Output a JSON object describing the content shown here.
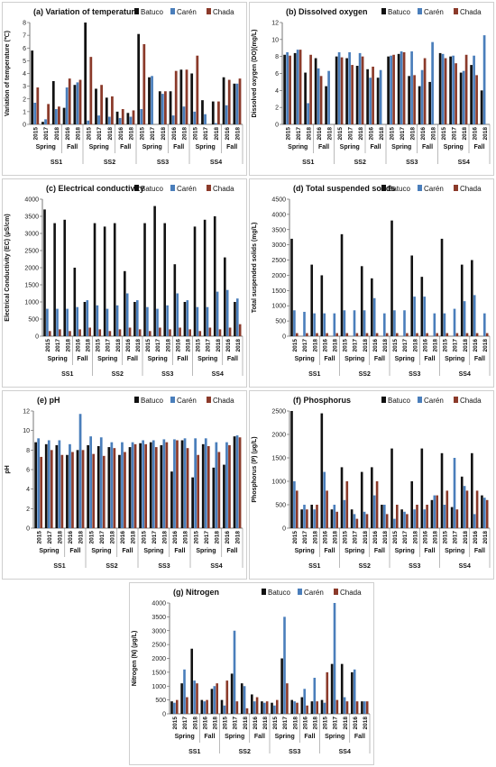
{
  "colors": {
    "Batuco": "#111111",
    "Carén": "#4a7ebb",
    "Chada": "#8b3a2a"
  },
  "chart_data": [
    {
      "id": "a",
      "type": "bar",
      "title": "(a) Variation of temperature",
      "ylabel": "Variation of temperature (℃)",
      "ylim": [
        0,
        8
      ],
      "yticks": [
        0,
        1,
        2,
        3,
        4,
        5,
        6,
        7,
        8
      ],
      "categories": [
        "2015",
        "2017",
        "2018",
        "2016",
        "2018",
        "2015",
        "2017",
        "2018",
        "2016",
        "2018",
        "2015",
        "2017",
        "2018",
        "2016",
        "2018",
        "2015",
        "2017",
        "2018",
        "2016",
        "2018"
      ],
      "seasons": [
        "Spring",
        "Fall",
        "Spring",
        "Fall",
        "Spring",
        "Fall",
        "Spring",
        "Fall"
      ],
      "sites": [
        "SS1",
        "SS2",
        "SS3",
        "SS4"
      ],
      "series": [
        {
          "name": "Batuco",
          "values": [
            5.8,
            0.2,
            3.4,
            1.3,
            3.1,
            8.0,
            2.8,
            2.1,
            1.0,
            0.9,
            7.1,
            3.7,
            2.6,
            2.6,
            4.3,
            4.0,
            1.9,
            1.8,
            3.7,
            3.2
          ]
        },
        {
          "name": "Carén",
          "values": [
            1.7,
            0.4,
            1.2,
            2.9,
            3.3,
            0.3,
            0.7,
            0.6,
            0.5,
            0.6,
            1.2,
            3.8,
            2.4,
            0.7,
            1.4,
            1.0,
            0.8,
            0.1,
            1.5,
            3.2
          ]
        },
        {
          "name": "Chada",
          "values": [
            2.9,
            1.6,
            1.4,
            3.6,
            3.5,
            5.3,
            3.1,
            2.2,
            1.2,
            1.1,
            6.3,
            0.0,
            2.6,
            4.2,
            4.3,
            5.4,
            0.0,
            1.8,
            3.5,
            3.6
          ]
        }
      ]
    },
    {
      "id": "b",
      "type": "bar",
      "title": "(b) Dissolved oxygen",
      "ylabel": "Dissolved oxygen (DO)(mg/L)",
      "ylim": [
        0,
        12
      ],
      "yticks": [
        0,
        2,
        4,
        6,
        8,
        10,
        12
      ],
      "categories": [
        "2015",
        "2017",
        "2018",
        "2016",
        "2018",
        "2015",
        "2017",
        "2018",
        "2016",
        "2018",
        "2015",
        "2017",
        "2018",
        "2016",
        "2018",
        "2015",
        "2017",
        "2018",
        "2016",
        "2018"
      ],
      "seasons": [
        "Spring",
        "Fall",
        "Spring",
        "Fall",
        "Spring",
        "Fall",
        "Spring",
        "Fall"
      ],
      "sites": [
        "SS1",
        "SS2",
        "SS3",
        "SS4"
      ],
      "series": [
        {
          "name": "Batuco",
          "values": [
            8.2,
            8.4,
            6.1,
            7.8,
            4.5,
            8.0,
            7.8,
            6.9,
            6.5,
            5.5,
            8.0,
            8.3,
            5.7,
            4.5,
            5.0,
            8.4,
            8.0,
            6.1,
            7.0,
            4.0
          ]
        },
        {
          "name": "Carén",
          "values": [
            8.5,
            8.8,
            2.5,
            6.6,
            6.3,
            8.5,
            8.5,
            8.4,
            5.5,
            6.4,
            8.1,
            8.6,
            8.6,
            6.4,
            9.7,
            8.3,
            8.1,
            6.3,
            8.1,
            10.5
          ]
        },
        {
          "name": "Chada",
          "values": [
            8.1,
            8.8,
            8.2,
            5.7,
            0.0,
            7.9,
            7.0,
            8.0,
            6.8,
            0.0,
            8.2,
            8.5,
            5.8,
            7.8,
            0.0,
            7.8,
            7.2,
            8.2,
            5.8,
            0.0
          ]
        }
      ]
    },
    {
      "id": "c",
      "type": "bar",
      "title": "(c) Electrical conductivity",
      "ylabel": "Electrical Conductivity (EC) (μS/cm)",
      "ylim": [
        0,
        4000
      ],
      "yticks": [
        0,
        500,
        1000,
        1500,
        2000,
        2500,
        3000,
        3500,
        4000
      ],
      "categories": [
        "2015",
        "2017",
        "2018",
        "2016",
        "2018",
        "2015",
        "2017",
        "2018",
        "2016",
        "2018",
        "2015",
        "2017",
        "2018",
        "2016",
        "2018",
        "2015",
        "2017",
        "2018",
        "2016",
        "2018"
      ],
      "seasons": [
        "Spring",
        "Fall",
        "Spring",
        "Fall",
        "Spring",
        "Fall",
        "Spring",
        "Fall"
      ],
      "sites": [
        "SS1",
        "SS2",
        "SS3",
        "SS4"
      ],
      "series": [
        {
          "name": "Batuco",
          "values": [
            3700,
            3300,
            3400,
            2000,
            1000,
            3300,
            3200,
            3300,
            1900,
            1000,
            3300,
            3800,
            3300,
            2100,
            1000,
            3200,
            3400,
            3500,
            2300,
            1000
          ]
        },
        {
          "name": "Carén",
          "values": [
            800,
            800,
            800,
            850,
            1050,
            900,
            800,
            900,
            1250,
            1050,
            850,
            800,
            900,
            1250,
            1050,
            850,
            850,
            1300,
            1350,
            1100
          ]
        },
        {
          "name": "Chada",
          "values": [
            150,
            200,
            150,
            200,
            250,
            200,
            150,
            200,
            250,
            200,
            150,
            250,
            200,
            250,
            200,
            150,
            250,
            200,
            250,
            350
          ]
        }
      ]
    },
    {
      "id": "d",
      "type": "bar",
      "title": "(d) Total suspended solids",
      "ylabel": "Total suspended solids (mg/L)",
      "ylim": [
        0,
        4500
      ],
      "yticks": [
        0,
        500,
        1000,
        1500,
        2000,
        2500,
        3000,
        3500,
        4000,
        4500
      ],
      "categories": [
        "2015",
        "2017",
        "2018",
        "2016",
        "2018",
        "2015",
        "2017",
        "2018",
        "2016",
        "2018",
        "2015",
        "2017",
        "2018",
        "2016",
        "2018",
        "2015",
        "2017",
        "2018",
        "2016",
        "2018"
      ],
      "seasons": [
        "Spring",
        "Fall",
        "Spring",
        "Fall",
        "Spring",
        "Fall",
        "Spring",
        "Fall"
      ],
      "sites": [
        "SS1",
        "SS2",
        "SS3",
        "SS4"
      ],
      "series": [
        {
          "name": "Batuco",
          "values": [
            3200,
            0,
            2350,
            2000,
            0,
            3350,
            0,
            2300,
            1900,
            0,
            3800,
            0,
            2650,
            1950,
            0,
            3200,
            0,
            2350,
            2500,
            0
          ]
        },
        {
          "name": "Carén",
          "values": [
            850,
            800,
            750,
            750,
            750,
            850,
            850,
            850,
            1250,
            750,
            850,
            850,
            1300,
            1300,
            750,
            750,
            900,
            1150,
            1350,
            750
          ]
        },
        {
          "name": "Chada",
          "values": [
            100,
            100,
            100,
            100,
            100,
            100,
            100,
            100,
            100,
            100,
            100,
            100,
            100,
            100,
            100,
            100,
            100,
            100,
            100,
            100
          ]
        }
      ]
    },
    {
      "id": "e",
      "type": "bar",
      "title": "(e) pH",
      "ylabel": "pH",
      "ylim": [
        0,
        12
      ],
      "yticks": [
        0,
        2,
        4,
        6,
        8,
        10,
        12
      ],
      "categories": [
        "2015",
        "2017",
        "2018",
        "2016",
        "2018",
        "2015",
        "2017",
        "2018",
        "2016",
        "2018",
        "2015",
        "2017",
        "2018",
        "2016",
        "2018",
        "2015",
        "2017",
        "2018",
        "2016",
        "2018"
      ],
      "seasons": [
        "Spring",
        "Fall",
        "Spring",
        "Fall",
        "Spring",
        "Fall",
        "Spring",
        "Fall"
      ],
      "sites": [
        "SS1",
        "SS2",
        "SS3",
        "SS4"
      ],
      "series": [
        {
          "name": "Batuco",
          "values": [
            8.8,
            8.6,
            8.5,
            7.5,
            8.0,
            8.5,
            8.4,
            8.3,
            7.5,
            8.3,
            8.7,
            8.8,
            8.5,
            5.8,
            9.0,
            5.2,
            8.6,
            6.2,
            6.5,
            9.4
          ]
        },
        {
          "name": "Carén",
          "values": [
            9.2,
            9.0,
            9.0,
            8.6,
            11.7,
            9.4,
            9.3,
            8.8,
            8.8,
            8.8,
            9.0,
            9.0,
            9.1,
            9.1,
            9.2,
            9.2,
            9.2,
            8.8,
            8.8,
            9.5
          ]
        },
        {
          "name": "Chada",
          "values": [
            7.3,
            8.0,
            7.5,
            7.8,
            8.0,
            7.6,
            7.4,
            8.2,
            7.8,
            8.6,
            8.6,
            8.3,
            8.8,
            9.0,
            8.2,
            7.5,
            8.4,
            7.8,
            8.5,
            9.3
          ]
        }
      ]
    },
    {
      "id": "f",
      "type": "bar",
      "title": "(f) Phosphorus",
      "ylabel": "Phosphorus (P) (µg/L)",
      "ylim": [
        0,
        2500
      ],
      "yticks": [
        0,
        500,
        1000,
        1500,
        2000,
        2500
      ],
      "categories": [
        "2015",
        "2017",
        "2018",
        "2016",
        "2018",
        "2015",
        "2017",
        "2018",
        "2016",
        "2018",
        "2015",
        "2017",
        "2018",
        "2016",
        "2018",
        "2015",
        "2017",
        "2018",
        "2016",
        "2018"
      ],
      "seasons": [
        "Spring",
        "Fall",
        "Spring",
        "Fall",
        "Spring",
        "Fall",
        "Spring",
        "Fall"
      ],
      "sites": [
        "SS1",
        "SS2",
        "SS3",
        "SS4"
      ],
      "series": [
        {
          "name": "Batuco",
          "values": [
            2500,
            400,
            500,
            2450,
            400,
            1300,
            400,
            1200,
            1300,
            500,
            1700,
            400,
            1000,
            1700,
            600,
            1600,
            450,
            1100,
            1600,
            700
          ]
        },
        {
          "name": "Carén",
          "values": [
            1000,
            500,
            400,
            1200,
            500,
            600,
            300,
            350,
            700,
            500,
            200,
            350,
            400,
            400,
            700,
            500,
            1500,
            900,
            300,
            650
          ]
        },
        {
          "name": "Chada",
          "values": [
            800,
            400,
            500,
            800,
            350,
            1000,
            200,
            300,
            1000,
            300,
            500,
            300,
            500,
            500,
            700,
            800,
            400,
            800,
            800,
            600
          ]
        }
      ]
    },
    {
      "id": "g",
      "type": "bar",
      "title": "(g) Nitrogen",
      "ylabel": "Nitrogen (N) (µg/L)",
      "ylim": [
        0,
        4000
      ],
      "yticks": [
        0,
        500,
        1000,
        1500,
        2000,
        2500,
        3000,
        3500,
        4000
      ],
      "categories": [
        "2015",
        "2017",
        "2018",
        "2016",
        "2018",
        "2015",
        "2017",
        "2018",
        "2016",
        "2018",
        "2015",
        "2017",
        "2018",
        "2016",
        "2018",
        "2015",
        "2017",
        "2018",
        "2016",
        "2018"
      ],
      "seasons": [
        "Spring",
        "Fall",
        "Spring",
        "Fall",
        "Spring",
        "Fall",
        "Spring",
        "Fall"
      ],
      "sites": [
        "SS1",
        "SS2",
        "SS3",
        "SS4"
      ],
      "series": [
        {
          "name": "Batuco",
          "values": [
            450,
            1100,
            2350,
            500,
            900,
            500,
            1450,
            1100,
            700,
            450,
            400,
            2000,
            500,
            600,
            450,
            500,
            1800,
            1800,
            1500,
            450
          ]
        },
        {
          "name": "Carén",
          "values": [
            400,
            1600,
            1200,
            450,
            1000,
            300,
            3000,
            1000,
            450,
            400,
            300,
            3500,
            450,
            900,
            1300,
            400,
            4000,
            600,
            1600,
            450
          ]
        },
        {
          "name": "Chada",
          "values": [
            500,
            600,
            1100,
            500,
            1100,
            1200,
            450,
            200,
            600,
            450,
            500,
            1100,
            400,
            300,
            450,
            1500,
            500,
            450,
            450,
            450
          ]
        }
      ]
    }
  ]
}
